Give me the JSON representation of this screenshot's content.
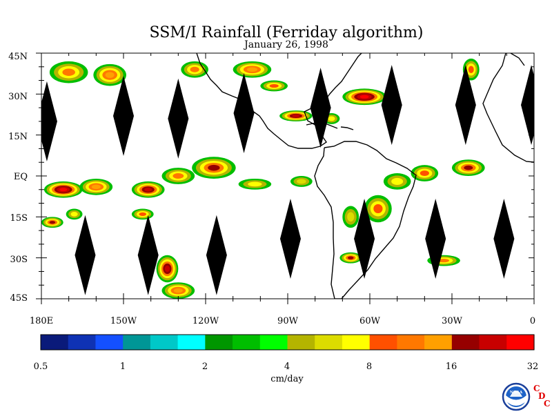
{
  "title": "SSM/I Rainfall (Ferriday algorithm)",
  "date": "January 26, 1998",
  "y_labels": [
    "45N",
    "30N",
    "15N",
    "EQ",
    "15S",
    "30S",
    "45S"
  ],
  "x_labels": [
    "180E",
    "150W",
    "120W",
    "90W",
    "60W",
    "30W",
    "0"
  ],
  "colorbar": {
    "colors": [
      "#0a1a7a",
      "#0f32b4",
      "#1450ff",
      "#009696",
      "#00c8c8",
      "#00ffff",
      "#009600",
      "#00be00",
      "#00ff00",
      "#b4b400",
      "#dcdc00",
      "#ffff00",
      "#ff5000",
      "#ff7800",
      "#ffa000",
      "#960000",
      "#c80000",
      "#ff0000"
    ],
    "tick_labels": [
      "0.5",
      "1",
      "2",
      "4",
      "8",
      "16",
      "32"
    ],
    "unit": "cm/day"
  },
  "logo": {
    "noaa_text": "NOAA",
    "cdc_letters": [
      "C",
      "D",
      "C"
    ],
    "cdc_color": "#e00000"
  },
  "map": {
    "lon_range": [
      -180,
      0
    ],
    "lat_range": [
      -45,
      45
    ],
    "data_gaps": [
      {
        "lon": -178,
        "lat": 20
      },
      {
        "lon": -150,
        "lat": 22
      },
      {
        "lon": -130,
        "lat": 21
      },
      {
        "lon": -106,
        "lat": 23
      },
      {
        "lon": -78,
        "lat": 25
      },
      {
        "lon": -52,
        "lat": 26
      },
      {
        "lon": -25,
        "lat": 26
      },
      {
        "lon": -1,
        "lat": 26
      },
      {
        "lon": -164,
        "lat": -29
      },
      {
        "lon": -141,
        "lat": -29
      },
      {
        "lon": -116,
        "lat": -29
      },
      {
        "lon": -89,
        "lat": -23
      },
      {
        "lon": -62,
        "lat": -23
      },
      {
        "lon": -36,
        "lat": -23
      },
      {
        "lon": -11,
        "lat": -23
      }
    ],
    "rain_cells": [
      {
        "lon": -172,
        "lat": -5,
        "rx": 7,
        "ry": 3,
        "level": 17
      },
      {
        "lon": -160,
        "lat": -4,
        "rx": 6,
        "ry": 3,
        "level": 14
      },
      {
        "lon": -176,
        "lat": -17,
        "rx": 4,
        "ry": 2,
        "level": 15
      },
      {
        "lon": -141,
        "lat": -5,
        "rx": 6,
        "ry": 3,
        "level": 16
      },
      {
        "lon": -130,
        "lat": 0,
        "rx": 6,
        "ry": 3,
        "level": 13
      },
      {
        "lon": -117,
        "lat": 3,
        "rx": 8,
        "ry": 4,
        "level": 15
      },
      {
        "lon": -102,
        "lat": -3,
        "rx": 6,
        "ry": 2,
        "level": 11
      },
      {
        "lon": -85,
        "lat": -2,
        "rx": 4,
        "ry": 2,
        "level": 10
      },
      {
        "lon": -170,
        "lat": 38,
        "rx": 7,
        "ry": 4,
        "level": 13
      },
      {
        "lon": -155,
        "lat": 37,
        "rx": 6,
        "ry": 4,
        "level": 14
      },
      {
        "lon": -124,
        "lat": 39,
        "rx": 5,
        "ry": 3,
        "level": 13
      },
      {
        "lon": -103,
        "lat": 39,
        "rx": 7,
        "ry": 3,
        "level": 14
      },
      {
        "lon": -95,
        "lat": 33,
        "rx": 5,
        "ry": 2,
        "level": 12
      },
      {
        "lon": -87,
        "lat": 22,
        "rx": 6,
        "ry": 2,
        "level": 16
      },
      {
        "lon": -74,
        "lat": 21,
        "rx": 3,
        "ry": 2,
        "level": 11
      },
      {
        "lon": -62,
        "lat": 29,
        "rx": 8,
        "ry": 3,
        "level": 17
      },
      {
        "lon": -23,
        "lat": 39,
        "rx": 3,
        "ry": 4,
        "level": 12
      },
      {
        "lon": -40,
        "lat": 1,
        "rx": 5,
        "ry": 3,
        "level": 12
      },
      {
        "lon": -24,
        "lat": 3,
        "rx": 6,
        "ry": 3,
        "level": 15
      },
      {
        "lon": -57,
        "lat": -12,
        "rx": 5,
        "ry": 5,
        "level": 12
      },
      {
        "lon": -50,
        "lat": -2,
        "rx": 5,
        "ry": 3,
        "level": 11
      },
      {
        "lon": -67,
        "lat": -15,
        "rx": 3,
        "ry": 4,
        "level": 10
      },
      {
        "lon": -67,
        "lat": -30,
        "rx": 4,
        "ry": 2,
        "level": 15
      },
      {
        "lon": -33,
        "lat": -31,
        "rx": 6,
        "ry": 2,
        "level": 13
      },
      {
        "lon": -134,
        "lat": -34,
        "rx": 4,
        "ry": 5,
        "level": 16
      },
      {
        "lon": -130,
        "lat": -42,
        "rx": 6,
        "ry": 3,
        "level": 14
      },
      {
        "lon": -143,
        "lat": -14,
        "rx": 4,
        "ry": 2,
        "level": 12
      },
      {
        "lon": -168,
        "lat": -14,
        "rx": 3,
        "ry": 2,
        "level": 11
      }
    ]
  }
}
